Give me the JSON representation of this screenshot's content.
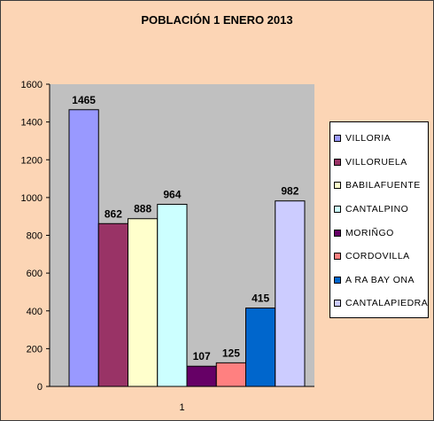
{
  "chart_data": {
    "type": "bar",
    "title": "POBLACIÓN 1 ENERO 2013",
    "categories": [
      "1"
    ],
    "series": [
      {
        "name": "VILLORIA",
        "values": [
          1465
        ],
        "color": "#9999ff"
      },
      {
        "name": "VILLORUELA",
        "values": [
          862
        ],
        "color": "#993366"
      },
      {
        "name": "BABILAFUENTE",
        "values": [
          888
        ],
        "color": "#ffffcc"
      },
      {
        "name": "CANTALPINO",
        "values": [
          964
        ],
        "color": "#ccffff"
      },
      {
        "name": "MORIÑGO",
        "values": [
          107
        ],
        "color": "#660066"
      },
      {
        "name": "CORDOVILLA",
        "values": [
          125
        ],
        "color": "#ff8080"
      },
      {
        "name": "A RA BAY ONA",
        "values": [
          415
        ],
        "color": "#0066cc"
      },
      {
        "name": "CANTALAPIEDRA",
        "values": [
          982
        ],
        "color": "#ccccff"
      }
    ],
    "yticks": [
      "0",
      "200",
      "400",
      "600",
      "800",
      "1000",
      "1200",
      "1400",
      "1600"
    ],
    "ylim": [
      0,
      1600
    ],
    "xlabel": "",
    "ylabel": "",
    "grid": false,
    "legend_position": "right",
    "plot_background": "#c0c0c0",
    "chart_background": "#fcd5b5"
  }
}
